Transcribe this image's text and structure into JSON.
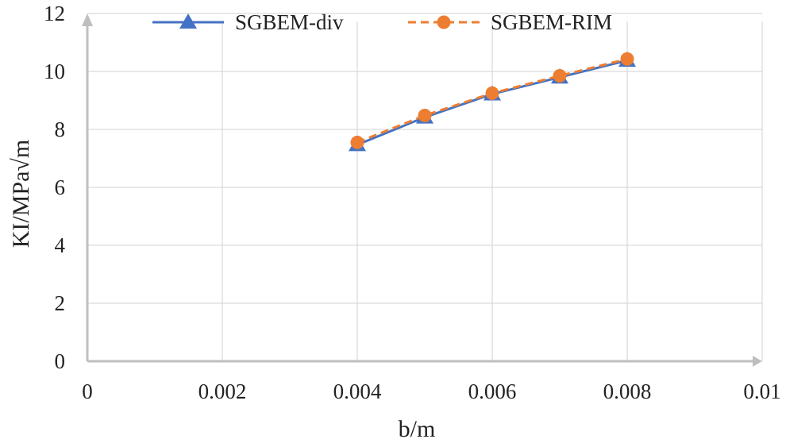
{
  "chart_data": {
    "type": "line",
    "title": "",
    "xlabel": "b/m",
    "ylabel": "KI/MPa√m",
    "xlim": [
      0,
      0.01
    ],
    "ylim": [
      0,
      12
    ],
    "x_ticks": [
      0,
      0.002,
      0.004,
      0.006,
      0.008,
      0.01
    ],
    "x_tick_labels": [
      "0",
      "0.002",
      "0.004",
      "0.006",
      "0.008",
      "0.01"
    ],
    "y_ticks": [
      0,
      2,
      4,
      6,
      8,
      10,
      12
    ],
    "y_tick_labels": [
      "0",
      "2",
      "4",
      "6",
      "8",
      "10",
      "12"
    ],
    "grid": true,
    "legend_position": "top",
    "x": [
      0.004,
      0.005,
      0.006,
      0.007,
      0.008
    ],
    "series": [
      {
        "name": "SGBEM-div",
        "values": [
          7.47,
          8.42,
          9.22,
          9.8,
          10.38
        ],
        "color": "#4472c4",
        "marker": "triangle",
        "line": "solid"
      },
      {
        "name": "SGBEM-RIM",
        "values": [
          7.55,
          8.48,
          9.25,
          9.85,
          10.43
        ],
        "color": "#ed7d31",
        "marker": "circle",
        "line": "dashed"
      }
    ],
    "axis_color": "#bfbfbf"
  }
}
